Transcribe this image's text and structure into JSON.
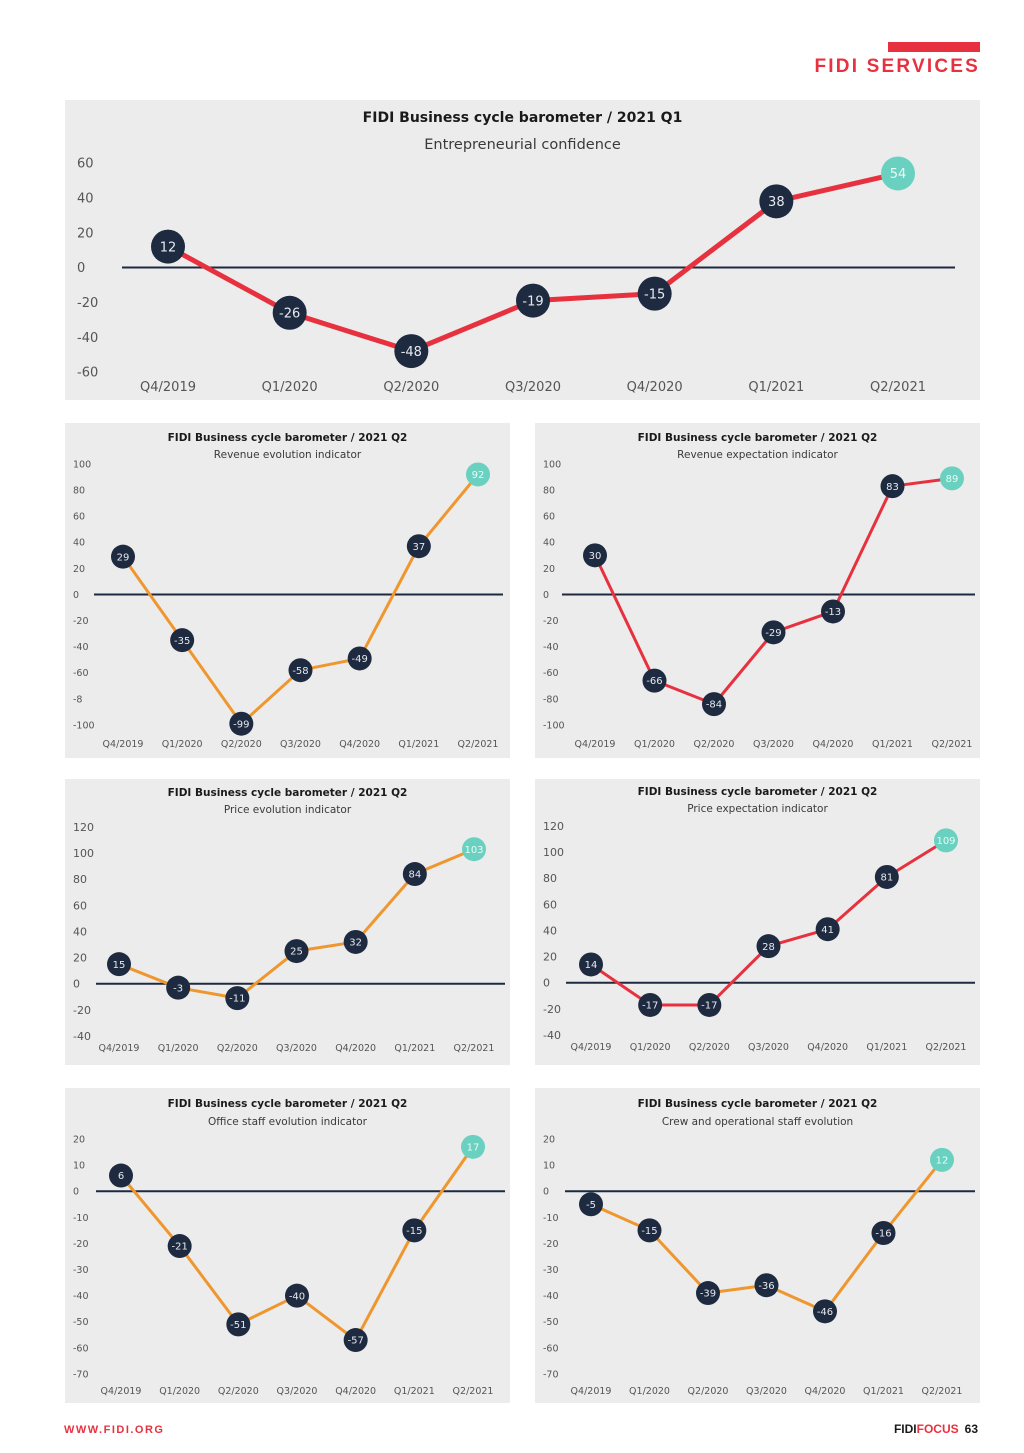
{
  "header": {
    "section_title": "FIDI SERVICES"
  },
  "footer": {
    "url": "WWW.FIDI.ORG",
    "magazine_part1": "FIDI",
    "magazine_part2": "FOCUS",
    "page_number": "63"
  },
  "colors": {
    "brand_red": "#e8313f",
    "node_dark": "#1e2a40",
    "node_highlight": "#6ad1c0",
    "line_red": "#e8313f",
    "line_orange": "#f0962e",
    "panel_bg": "#ebeceb",
    "zero_line": "#1e2a40"
  },
  "chart_data": [
    {
      "id": "entrepreneurial-confidence",
      "type": "line",
      "title": "FIDI Business cycle barometer / 2021 Q1",
      "subtitle": "Entrepreneurial confidence",
      "categories": [
        "Q4/2019",
        "Q1/2020",
        "Q2/2020",
        "Q3/2020",
        "Q4/2020",
        "Q1/2021",
        "Q2/2021"
      ],
      "values": [
        12,
        -26,
        -48,
        -19,
        -15,
        38,
        54
      ],
      "yticks": [
        "60",
        "40",
        "20",
        "0",
        "-20",
        "-40",
        "-60"
      ],
      "ylim": [
        -60,
        60
      ],
      "line_color": "red",
      "highlight_last": true,
      "grid": false,
      "zero_line": true
    },
    {
      "id": "revenue-evolution",
      "type": "line",
      "title": "FIDI Business cycle barometer / 2021 Q2",
      "subtitle": "Revenue evolution indicator",
      "categories": [
        "Q4/2019",
        "Q1/2020",
        "Q2/2020",
        "Q3/2020",
        "Q4/2020",
        "Q1/2021",
        "Q2/2021"
      ],
      "values": [
        29,
        -35,
        -99,
        -58,
        -49,
        37,
        92
      ],
      "yticks": [
        "100",
        "80",
        "60",
        "40",
        "20",
        "0",
        "-20",
        "-40",
        "-60",
        "-8",
        "-100"
      ],
      "ylim": [
        -100,
        100
      ],
      "line_color": "orange",
      "highlight_last": true,
      "grid": false,
      "zero_line": true
    },
    {
      "id": "revenue-expectation",
      "type": "line",
      "title": "FIDI Business cycle barometer / 2021 Q2",
      "subtitle": "Revenue expectation indicator",
      "categories": [
        "Q4/2019",
        "Q1/2020",
        "Q2/2020",
        "Q3/2020",
        "Q4/2020",
        "Q1/2021",
        "Q2/2021"
      ],
      "values": [
        30,
        -66,
        -84,
        -29,
        -13,
        83,
        89
      ],
      "yticks": [
        "100",
        "80",
        "60",
        "40",
        "20",
        "0",
        "-20",
        "-40",
        "-60",
        "-80",
        "-100"
      ],
      "ylim": [
        -100,
        100
      ],
      "line_color": "red",
      "highlight_last": true,
      "grid": false,
      "zero_line": true
    },
    {
      "id": "price-evolution",
      "type": "line",
      "title": "FIDI Business cycle barometer / 2021 Q2",
      "subtitle": "Price evolution indicator",
      "categories": [
        "Q4/2019",
        "Q1/2020",
        "Q2/2020",
        "Q3/2020",
        "Q4/2020",
        "Q1/2021",
        "Q2/2021"
      ],
      "values": [
        15,
        -3,
        -11,
        25,
        32,
        84,
        103
      ],
      "yticks": [
        "120",
        "100",
        "80",
        "60",
        "40",
        "20",
        "0",
        "-20",
        "-40"
      ],
      "ylim": [
        -40,
        120
      ],
      "line_color": "orange",
      "highlight_last": true,
      "grid": false,
      "zero_line": true
    },
    {
      "id": "price-expectation",
      "type": "line",
      "title": "FIDI Business cycle barometer / 2021 Q2",
      "subtitle": "Price expectation indicator",
      "categories": [
        "Q4/2019",
        "Q1/2020",
        "Q2/2020",
        "Q3/2020",
        "Q4/2020",
        "Q1/2021",
        "Q2/2021"
      ],
      "values": [
        14,
        -17,
        -17,
        28,
        41,
        81,
        109
      ],
      "yticks": [
        "120",
        "100",
        "80",
        "60",
        "40",
        "20",
        "0",
        "-20",
        "-40"
      ],
      "ylim": [
        -40,
        120
      ],
      "line_color": "red",
      "highlight_last": true,
      "grid": false,
      "zero_line": true
    },
    {
      "id": "office-staff-evolution",
      "type": "line",
      "title": "FIDI Business cycle barometer / 2021 Q2",
      "subtitle": "Office staff evolution indicator",
      "categories": [
        "Q4/2019",
        "Q1/2020",
        "Q2/2020",
        "Q3/2020",
        "Q4/2020",
        "Q1/2021",
        "Q2/2021"
      ],
      "values": [
        6,
        -21,
        -51,
        -40,
        -57,
        -15,
        17
      ],
      "yticks": [
        "20",
        "10",
        "0",
        "-10",
        "-20",
        "-30",
        "-40",
        "-50",
        "-60",
        "-70"
      ],
      "ylim": [
        -70,
        20
      ],
      "line_color": "orange",
      "highlight_last": true,
      "grid": false,
      "zero_line": true
    },
    {
      "id": "crew-operational-staff-evolution",
      "type": "line",
      "title": "FIDI Business cycle barometer / 2021 Q2",
      "subtitle": "Crew and operational staff evolution",
      "categories": [
        "Q4/2019",
        "Q1/2020",
        "Q2/2020",
        "Q3/2020",
        "Q4/2020",
        "Q1/2021",
        "Q2/2021"
      ],
      "values": [
        -5,
        -15,
        -39,
        -36,
        -46,
        -16,
        12
      ],
      "yticks": [
        "20",
        "10",
        "0",
        "-10",
        "-20",
        "-30",
        "-40",
        "-50",
        "-60",
        "-70"
      ],
      "ylim": [
        -70,
        20
      ],
      "line_color": "orange",
      "highlight_last": true,
      "grid": false,
      "zero_line": true
    }
  ]
}
